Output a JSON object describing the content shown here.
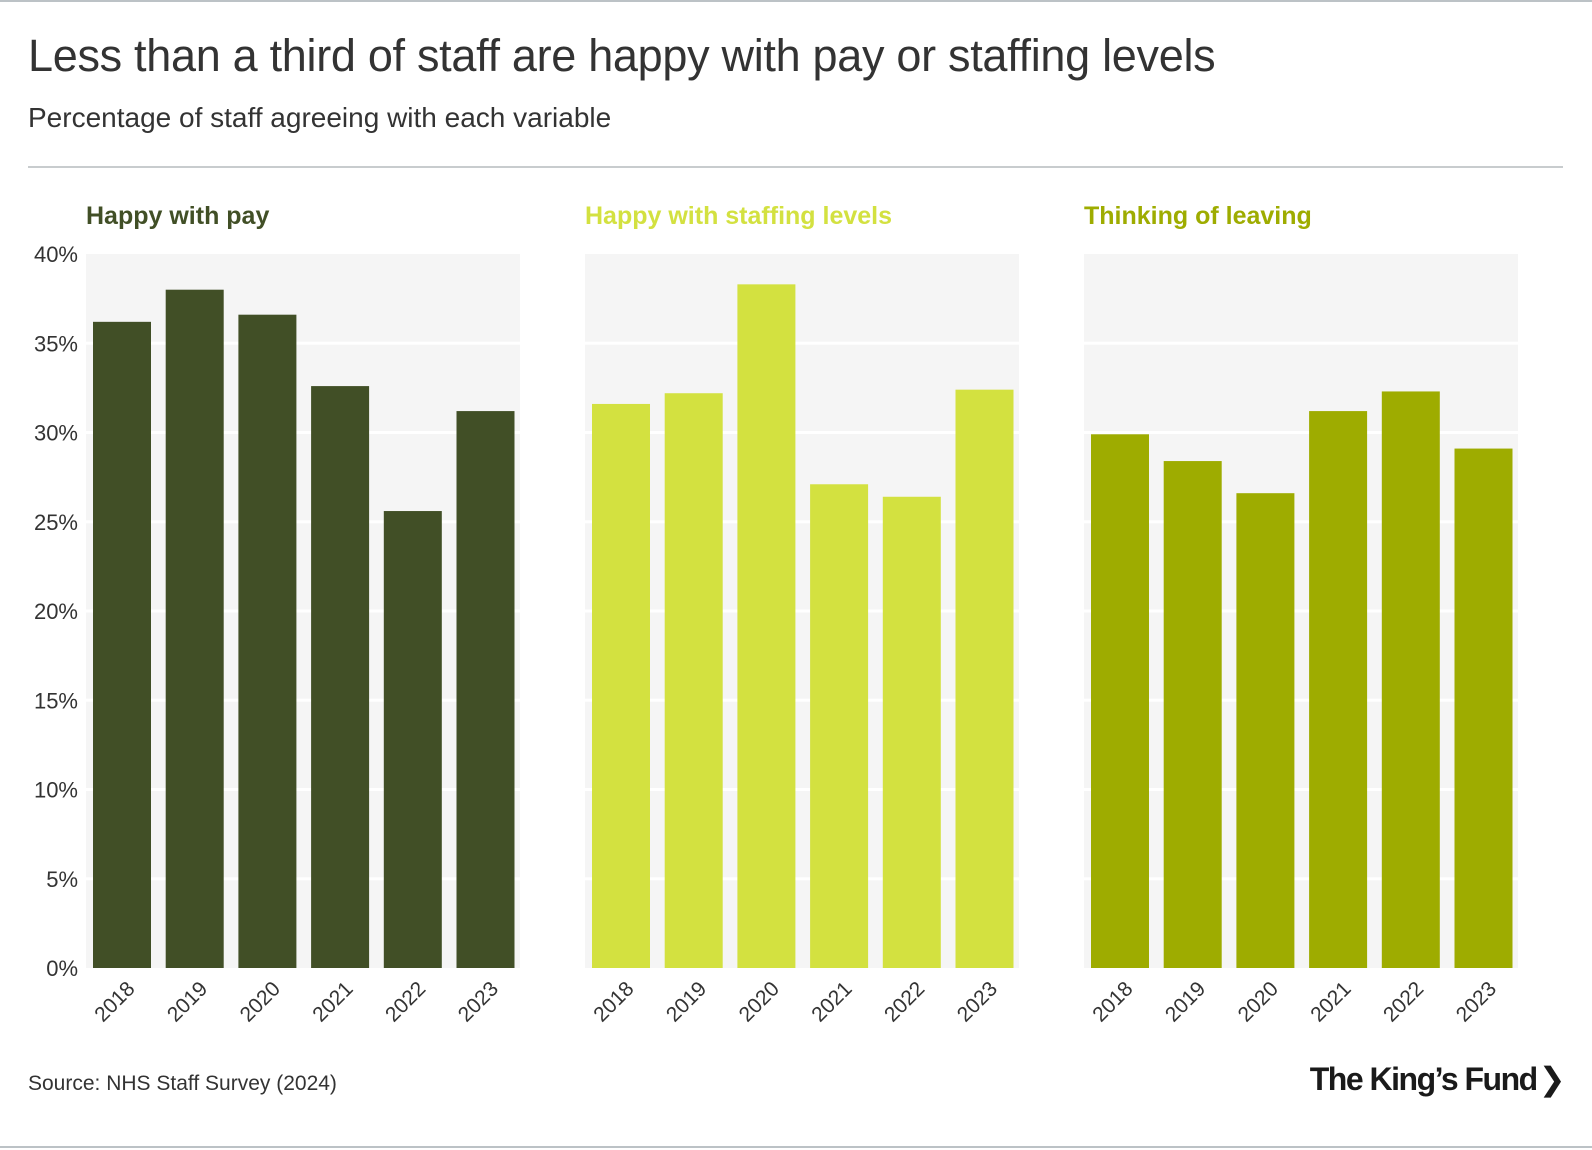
{
  "title": "Less than a third of staff are happy with pay or staffing levels",
  "subtitle": "Percentage of staff agreeing with each variable",
  "source": "Source: NHS Staff Survey (2024)",
  "logo": {
    "text": "The King’s Fund",
    "chevron": "❯"
  },
  "colors": {
    "pay": "#414f26",
    "staffing": "#d3e140",
    "leaving": "#9eac00",
    "panel_bg": "#f5f5f5",
    "grid": "#ffffff",
    "axis_text": "#333333"
  },
  "chart_data": [
    {
      "type": "bar",
      "title": "Happy with pay",
      "color": "#414f26",
      "categories": [
        "2018",
        "2019",
        "2020",
        "2021",
        "2022",
        "2023"
      ],
      "values": [
        36.2,
        38.0,
        36.6,
        32.6,
        25.6,
        31.2
      ],
      "ylim": [
        0,
        40
      ],
      "yticks": [
        "0%",
        "5%",
        "10%",
        "15%",
        "20%",
        "25%",
        "30%",
        "35%",
        "40%"
      ],
      "grid": true
    },
    {
      "type": "bar",
      "title": "Happy with staffing levels",
      "color": "#d3e140",
      "categories": [
        "2018",
        "2019",
        "2020",
        "2021",
        "2022",
        "2023"
      ],
      "values": [
        31.6,
        32.2,
        38.3,
        27.1,
        26.4,
        32.4
      ],
      "ylim": [
        0,
        40
      ],
      "grid": true
    },
    {
      "type": "bar",
      "title": "Thinking of leaving",
      "color": "#9eac00",
      "categories": [
        "2018",
        "2019",
        "2020",
        "2021",
        "2022",
        "2023"
      ],
      "values": [
        29.9,
        28.4,
        26.6,
        31.2,
        32.3,
        29.1
      ],
      "ylim": [
        0,
        40
      ],
      "grid": true
    }
  ]
}
